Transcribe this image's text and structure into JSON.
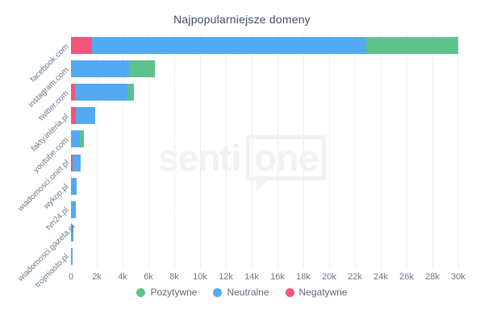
{
  "title": "Najpopularniejsze domeny",
  "watermark": {
    "prefix": "senti",
    "boxed": "one"
  },
  "colors": {
    "positive": "#5ec28d",
    "neutral": "#53aaf2",
    "negative": "#f4537c",
    "grid": "#dbe0e6",
    "axis_text": "#69788c",
    "title_text": "#3e4d63"
  },
  "legend": {
    "items": [
      {
        "label": "Pozytywne",
        "color": "#5ec28d"
      },
      {
        "label": "Neutralne",
        "color": "#53aaf2"
      },
      {
        "label": "Negatywne",
        "color": "#f4537c"
      }
    ]
  },
  "chart_data": {
    "type": "bar",
    "orientation": "horizontal",
    "stacked": true,
    "title": "Najpopularniejsze domeny",
    "categories": [
      "facebook.com",
      "instagram.com",
      "twitter.com",
      "fakty.interia.pl",
      "youtube.com",
      "wiadomosci.onet.pl",
      "wykop.pl",
      "tvn24.pl",
      "wiadomosci.gazeta.pl",
      "trojmiasto.pl"
    ],
    "series": [
      {
        "name": "Negatywne",
        "color": "#f4537c",
        "values": [
          1600,
          0,
          300,
          400,
          0,
          100,
          0,
          0,
          0,
          0
        ]
      },
      {
        "name": "Neutralne",
        "color": "#53aaf2",
        "values": [
          21300,
          4500,
          4100,
          1500,
          700,
          650,
          450,
          350,
          200,
          150
        ]
      },
      {
        "name": "Pozytywne",
        "color": "#5ec28d",
        "values": [
          7100,
          2000,
          450,
          0,
          300,
          0,
          0,
          0,
          0,
          0
        ]
      }
    ],
    "totals": [
      30000,
      6500,
      4850,
      1900,
      1000,
      750,
      450,
      350,
      200,
      150
    ],
    "xlabel": "",
    "ylabel": "",
    "xlim": [
      0,
      30000
    ],
    "x_ticks": [
      {
        "value": 0,
        "label": "0"
      },
      {
        "value": 2000,
        "label": "2k"
      },
      {
        "value": 4000,
        "label": "4k"
      },
      {
        "value": 6000,
        "label": "6k"
      },
      {
        "value": 8000,
        "label": "8k"
      },
      {
        "value": 10000,
        "label": "10k"
      },
      {
        "value": 12000,
        "label": "12k"
      },
      {
        "value": 14000,
        "label": "14k"
      },
      {
        "value": 16000,
        "label": "16k"
      },
      {
        "value": 18000,
        "label": "18k"
      },
      {
        "value": 20000,
        "label": "20k"
      },
      {
        "value": 22000,
        "label": "22k"
      },
      {
        "value": 24000,
        "label": "24k"
      },
      {
        "value": 26000,
        "label": "26k"
      },
      {
        "value": 28000,
        "label": "28k"
      },
      {
        "value": 30000,
        "label": "30k"
      }
    ],
    "grid": "vertical-dotted",
    "legend_position": "bottom"
  }
}
